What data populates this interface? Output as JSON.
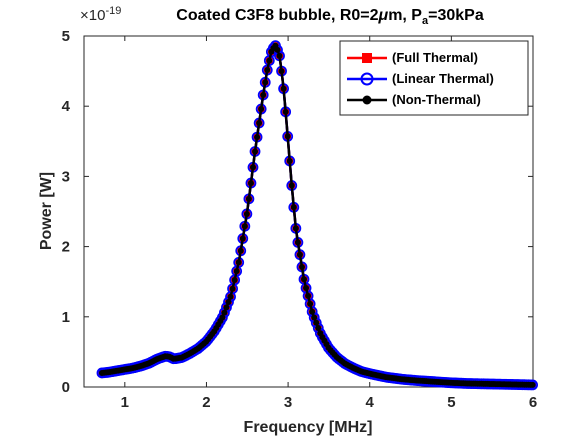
{
  "chart_data": {
    "type": "line",
    "title_parts": {
      "main": "Coated C3F8 bubble, R0=2",
      "mu": "μ",
      "unit_m": "m, P",
      "sub": "a",
      "tail": "=30kPa"
    },
    "xlabel": "Frequency [MHz]",
    "ylabel": "Power [W]",
    "xlim": [
      0.5,
      6
    ],
    "ylim": [
      0,
      5
    ],
    "xticks": [
      1,
      2,
      3,
      4,
      5,
      6
    ],
    "yticks": [
      0,
      1,
      2,
      3,
      4,
      5
    ],
    "y_exponent": {
      "base": "×10",
      "power": "-19"
    },
    "grid": false,
    "legend_position": "top-right",
    "colors": {
      "full_thermal": "#ff0000",
      "linear_thermal": "#0000ff",
      "non_thermal": "#000000"
    },
    "markers": {
      "full_thermal": "square",
      "linear_thermal": "circle",
      "non_thermal": "filled-circle"
    },
    "series": [
      {
        "name": "(Full Thermal)"
      },
      {
        "name": "(Linear Thermal)"
      },
      {
        "name": "(Non-Thermal)"
      }
    ],
    "curve": {
      "x": [
        0.72,
        0.8,
        0.9,
        1.0,
        1.1,
        1.2,
        1.3,
        1.4,
        1.5,
        1.55,
        1.6,
        1.7,
        1.8,
        1.9,
        2.0,
        2.1,
        2.2,
        2.3,
        2.4,
        2.5,
        2.6,
        2.7,
        2.75,
        2.8,
        2.85,
        2.9,
        2.95,
        3.0,
        3.05,
        3.1,
        3.2,
        3.3,
        3.4,
        3.5,
        3.6,
        3.7,
        3.8,
        3.9,
        4.0,
        4.2,
        4.4,
        4.6,
        4.8,
        5.0,
        5.2,
        5.4,
        5.6,
        5.8,
        6.0
      ],
      "y": [
        0.2,
        0.21,
        0.23,
        0.25,
        0.27,
        0.3,
        0.34,
        0.4,
        0.44,
        0.43,
        0.4,
        0.42,
        0.48,
        0.55,
        0.65,
        0.8,
        1.0,
        1.3,
        1.8,
        2.5,
        3.4,
        4.2,
        4.55,
        4.8,
        4.87,
        4.7,
        4.2,
        3.5,
        2.8,
        2.2,
        1.5,
        1.05,
        0.75,
        0.55,
        0.42,
        0.33,
        0.27,
        0.22,
        0.19,
        0.14,
        0.11,
        0.09,
        0.075,
        0.06,
        0.05,
        0.045,
        0.04,
        0.035,
        0.03
      ]
    }
  }
}
